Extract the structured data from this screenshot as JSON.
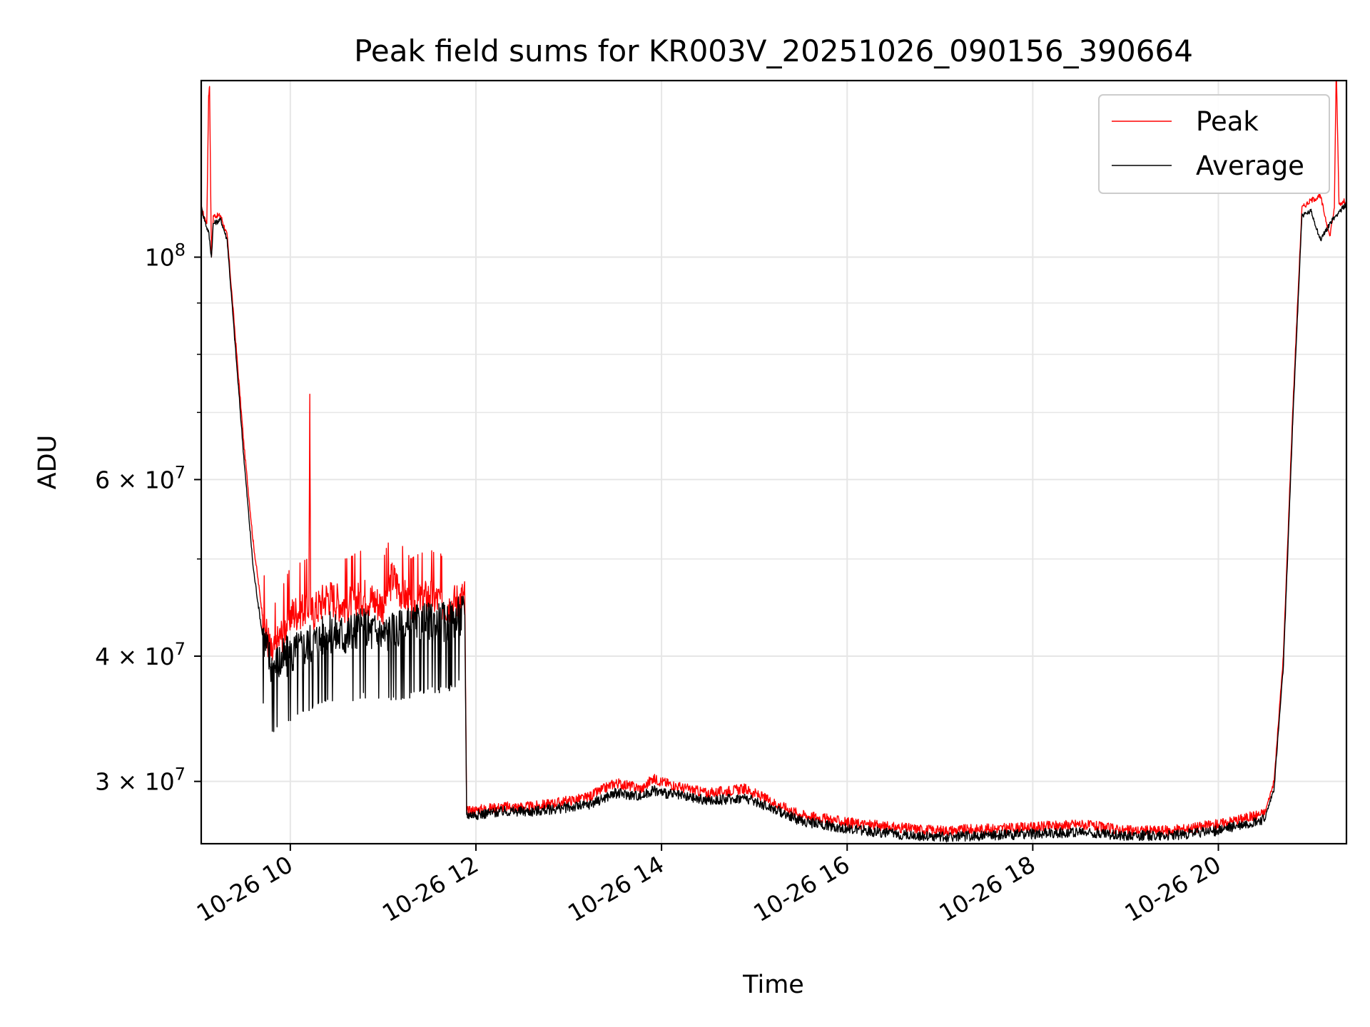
{
  "chart_data": {
    "type": "line",
    "title": "Peak field sums for KR003V_20251026_090156_390664",
    "xlabel": "Time",
    "ylabel": "ADU",
    "yscale": "log",
    "grid": true,
    "legend_position": "top-right",
    "x_unit": "hours since 10-26 00:00",
    "xlim": [
      9.04,
      21.38
    ],
    "ylim": [
      26000000,
      150000000
    ],
    "x_ticks": [
      {
        "value": 10,
        "label": "10-26 10"
      },
      {
        "value": 12,
        "label": "10-26 12"
      },
      {
        "value": 14,
        "label": "10-26 14"
      },
      {
        "value": 16,
        "label": "10-26 16"
      },
      {
        "value": 18,
        "label": "10-26 18"
      },
      {
        "value": 20,
        "label": "10-26 20"
      }
    ],
    "y_ticks": [
      {
        "value": 30000000,
        "label_base": "3 × 10",
        "label_exp": "7"
      },
      {
        "value": 40000000,
        "label_base": "4 × 10",
        "label_exp": "7"
      },
      {
        "value": 60000000,
        "label_base": "6 × 10",
        "label_exp": "7"
      },
      {
        "value": 100000000,
        "label_base": "10",
        "label_exp": "8"
      }
    ],
    "y_minor_ticks": [
      50000000,
      70000000,
      80000000,
      90000000
    ],
    "series": [
      {
        "name": "Peak",
        "color": "#ff0000",
        "x": [
          9.04,
          9.1,
          9.12,
          9.13,
          9.15,
          9.17,
          9.25,
          9.32,
          9.4,
          9.5,
          9.6,
          9.7,
          9.8,
          9.9,
          10.0,
          10.2,
          10.21,
          10.22,
          10.4,
          10.6,
          10.8,
          11.0,
          11.1,
          11.3,
          11.5,
          11.7,
          11.88,
          11.9,
          12.0,
          12.3,
          12.6,
          12.9,
          13.2,
          13.5,
          13.8,
          13.9,
          14.2,
          14.5,
          14.9,
          15.2,
          15.5,
          15.8,
          16.0,
          16.5,
          17.0,
          17.5,
          18.0,
          18.5,
          19.0,
          19.5,
          20.0,
          20.3,
          20.5,
          20.6,
          20.7,
          20.8,
          20.9,
          21.0,
          21.1,
          21.2,
          21.25,
          21.27,
          21.3,
          21.38
        ],
        "y": [
          112000000,
          108000000,
          145000000,
          148000000,
          100000000,
          110000000,
          110000000,
          105000000,
          85000000,
          65000000,
          52000000,
          44000000,
          40000000,
          42000000,
          44000000,
          45000000,
          73000000,
          44000000,
          46000000,
          45000000,
          46000000,
          45000000,
          48000000,
          45000000,
          46000000,
          45000000,
          46000000,
          28000000,
          28100000,
          28300000,
          28300000,
          28600000,
          28900000,
          29900000,
          29500000,
          30200000,
          29600000,
          29200000,
          29500000,
          28600000,
          27800000,
          27500000,
          27300000,
          27000000,
          26800000,
          26900000,
          27000000,
          27200000,
          26800000,
          26800000,
          27200000,
          27600000,
          27900000,
          30000000,
          40000000,
          70000000,
          112000000,
          114000000,
          115000000,
          105000000,
          112000000,
          155000000,
          113000000,
          114000000
        ]
      },
      {
        "name": "Average",
        "color": "#000000",
        "x": [
          9.04,
          9.1,
          9.12,
          9.15,
          9.17,
          9.25,
          9.32,
          9.4,
          9.5,
          9.6,
          9.7,
          9.8,
          9.9,
          10.0,
          10.2,
          10.4,
          10.6,
          10.8,
          11.0,
          11.3,
          11.5,
          11.7,
          11.88,
          11.9,
          12.0,
          12.3,
          12.6,
          12.9,
          13.2,
          13.5,
          13.8,
          13.9,
          14.2,
          14.5,
          14.9,
          15.2,
          15.5,
          15.8,
          16.0,
          16.5,
          17.0,
          17.5,
          18.0,
          18.5,
          19.0,
          19.5,
          20.0,
          20.3,
          20.5,
          20.6,
          20.7,
          20.8,
          20.9,
          21.0,
          21.1,
          21.2,
          21.3,
          21.38
        ],
        "y": [
          112000000,
          107000000,
          106000000,
          100000000,
          108000000,
          109000000,
          104000000,
          83000000,
          63000000,
          49000000,
          42000000,
          39000000,
          39500000,
          40000000,
          41000000,
          42000000,
          42000000,
          42500000,
          42000000,
          42500000,
          43000000,
          43000000,
          44000000,
          27800000,
          27800000,
          28000000,
          28000000,
          28200000,
          28400000,
          29200000,
          29000000,
          29400000,
          29000000,
          28700000,
          28900000,
          28200000,
          27400000,
          27100000,
          26900000,
          26600000,
          26400000,
          26500000,
          26600000,
          26700000,
          26500000,
          26500000,
          26800000,
          27200000,
          27500000,
          29500000,
          39000000,
          68000000,
          110000000,
          111000000,
          104000000,
          108000000,
          111000000,
          113000000
        ]
      }
    ]
  }
}
